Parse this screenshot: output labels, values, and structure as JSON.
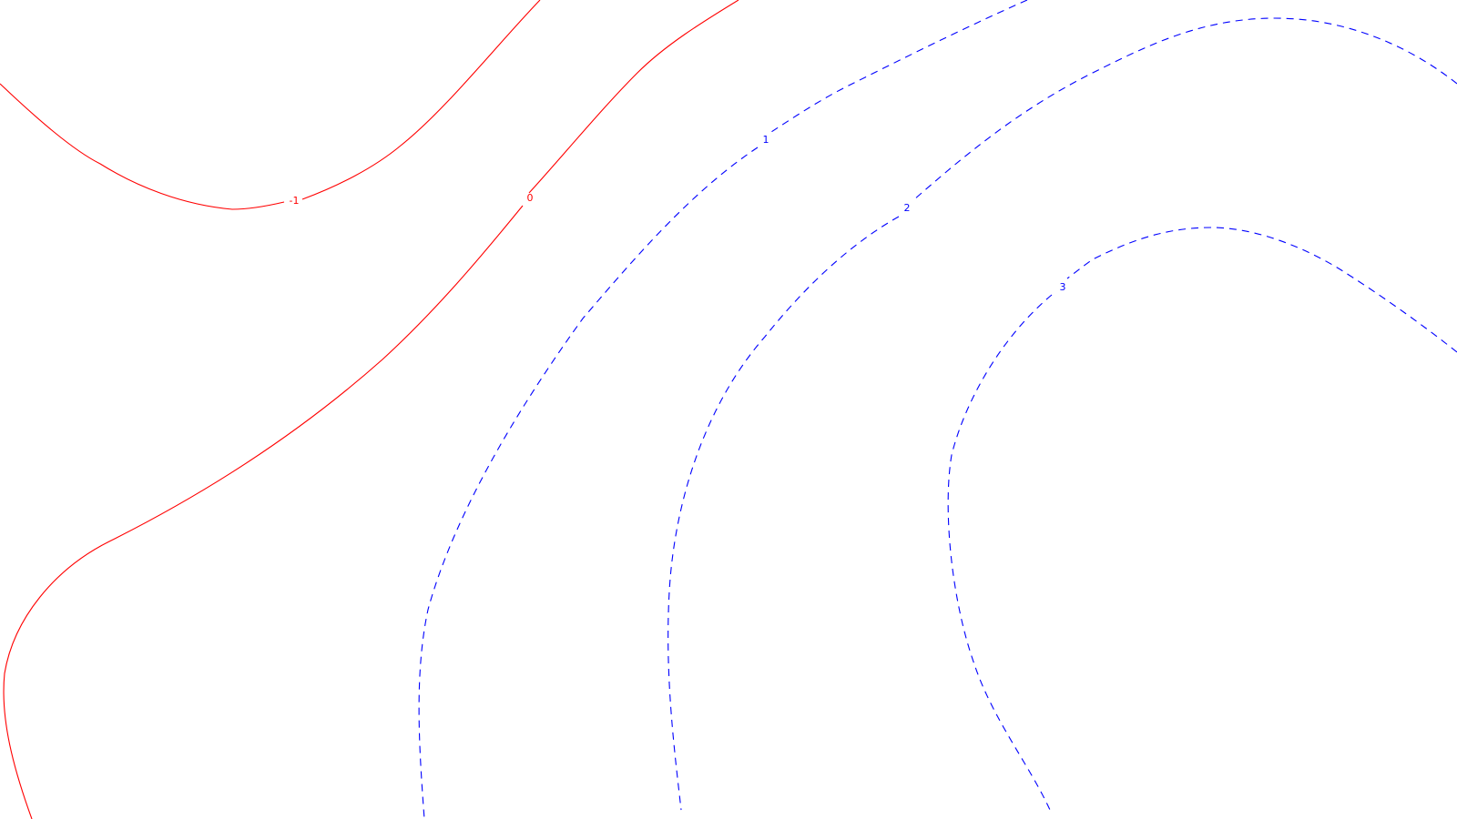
{
  "map": {
    "contours": [
      {
        "id": "contour-minus-1",
        "level": "-1",
        "color": "#ff0000",
        "style": "solid"
      },
      {
        "id": "contour-0",
        "level": "0",
        "color": "#ff0000",
        "style": "solid"
      },
      {
        "id": "contour-1",
        "level": "1",
        "color": "#0000ff",
        "style": "dashed"
      },
      {
        "id": "contour-2",
        "level": "2",
        "color": "#0000ff",
        "style": "dashed"
      },
      {
        "id": "contour-3",
        "level": "3",
        "color": "#0000ff",
        "style": "dashed"
      }
    ]
  }
}
